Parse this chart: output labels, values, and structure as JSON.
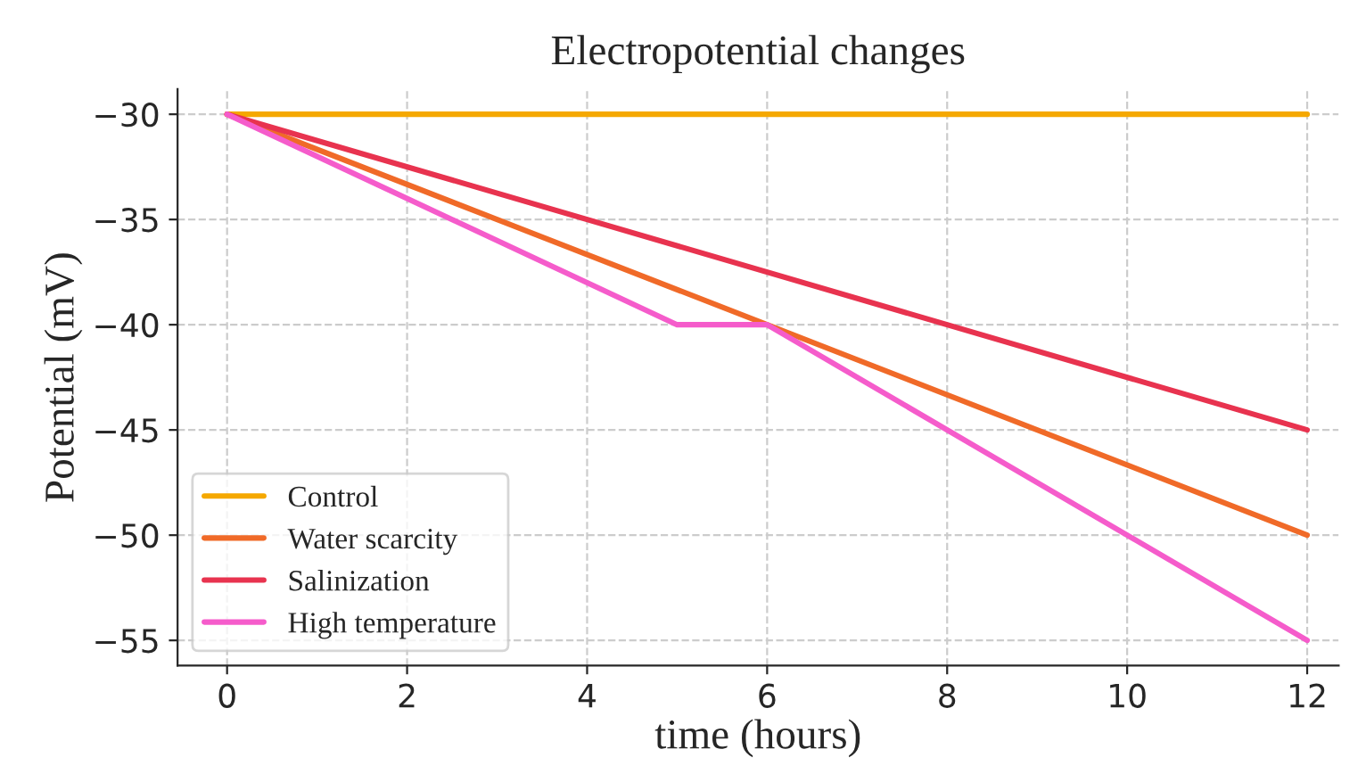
{
  "chart_data": {
    "type": "line",
    "title": "Electropotential changes",
    "xlabel": "time (hours)",
    "ylabel": "Potential (mV)",
    "series": [
      {
        "name": "Control",
        "color": "#f5a800",
        "x": [
          0,
          12
        ],
        "values": [
          -30,
          -30
        ]
      },
      {
        "name": "Water scarcity",
        "color": "#f06a28",
        "x": [
          0,
          12
        ],
        "values": [
          -30,
          -50
        ]
      },
      {
        "name": "Salinization",
        "color": "#e8334f",
        "x": [
          0,
          12
        ],
        "values": [
          -30,
          -45
        ]
      },
      {
        "name": "High temperature",
        "color": "#f55ccb",
        "x": [
          0,
          5,
          6,
          12
        ],
        "values": [
          -30,
          -40,
          -40,
          -55
        ]
      }
    ],
    "xlim": [
      -0.55,
      12.35
    ],
    "ylim": [
      -56.2,
      -28.8
    ],
    "xticks": [
      0,
      2,
      4,
      6,
      8,
      10,
      12
    ],
    "yticks": [
      {
        "value": -55,
        "label": "−55"
      },
      {
        "value": -50,
        "label": "−50"
      },
      {
        "value": -45,
        "label": "−45"
      },
      {
        "value": -40,
        "label": "−40"
      },
      {
        "value": -35,
        "label": "−35"
      },
      {
        "value": -30,
        "label": "−30"
      }
    ],
    "grid": true,
    "legend": "bottom left",
    "marker": "none",
    "line_style": "solid"
  }
}
